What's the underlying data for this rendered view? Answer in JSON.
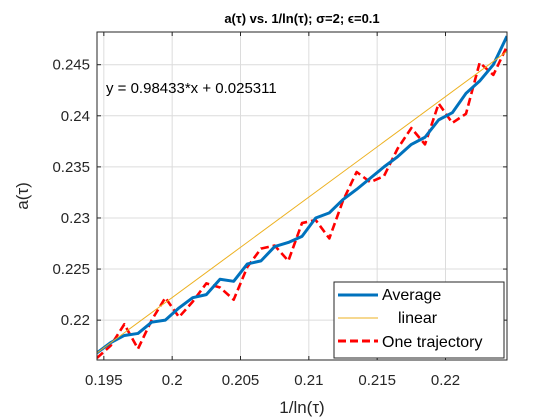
{
  "chart_data": {
    "type": "line",
    "title": "a(τ) vs. 1/ln(τ); σ=2; ϵ=0.1",
    "xlabel": "1/ln(τ)",
    "ylabel": "a(τ)",
    "xlim": [
      0.1945,
      0.2245
    ],
    "ylim": [
      0.2161,
      0.2482
    ],
    "xticks": [
      0.195,
      0.2,
      0.205,
      0.21,
      0.215,
      0.22
    ],
    "xtick_labels": [
      "0.195",
      "0.2",
      "0.205",
      "0.21",
      "0.215",
      "0.22"
    ],
    "yticks": [
      0.22,
      0.225,
      0.23,
      0.235,
      0.24,
      0.245
    ],
    "ytick_labels": [
      "0.22",
      "0.225",
      "0.23",
      "0.235",
      "0.24",
      "0.245"
    ],
    "grid": true,
    "legend_location": "bottom-right",
    "annotation": "y = 0.98433*x + 0.025311",
    "series": [
      {
        "name": "Average",
        "color": "#0072BD",
        "style": "solid",
        "x": [
          0.1945,
          0.1955,
          0.1965,
          0.1975,
          0.1985,
          0.1995,
          0.2005,
          0.2015,
          0.2025,
          0.2035,
          0.2045,
          0.2055,
          0.2065,
          0.2075,
          0.2085,
          0.2095,
          0.2105,
          0.2115,
          0.2125,
          0.2135,
          0.2145,
          0.2155,
          0.2165,
          0.2175,
          0.2185,
          0.2195,
          0.2205,
          0.2215,
          0.2225,
          0.2235,
          0.2245
        ],
        "y": [
          0.2168,
          0.2178,
          0.2185,
          0.2187,
          0.2198,
          0.22,
          0.2212,
          0.2222,
          0.2225,
          0.224,
          0.2238,
          0.2255,
          0.2258,
          0.2272,
          0.2276,
          0.2282,
          0.23,
          0.2305,
          0.2318,
          0.2328,
          0.2339,
          0.235,
          0.236,
          0.2372,
          0.2379,
          0.2396,
          0.2403,
          0.2422,
          0.2434,
          0.245,
          0.2478
        ]
      },
      {
        "name": "linear",
        "color": "#EDB120",
        "style": "solid",
        "x": [
          0.1945,
          0.2245
        ],
        "y": [
          0.2168,
          0.2463
        ]
      },
      {
        "name": "One trajectory",
        "color": "#FF0000",
        "style": "dashed",
        "x": [
          0.1945,
          0.1955,
          0.1965,
          0.1975,
          0.1985,
          0.1995,
          0.2005,
          0.2015,
          0.2025,
          0.2035,
          0.2045,
          0.2055,
          0.2065,
          0.2075,
          0.2085,
          0.2095,
          0.2105,
          0.2115,
          0.2125,
          0.2135,
          0.2145,
          0.2155,
          0.2165,
          0.2175,
          0.2185,
          0.2195,
          0.2205,
          0.2215,
          0.2225,
          0.2235,
          0.2245
        ],
        "y": [
          0.2163,
          0.2175,
          0.2196,
          0.2172,
          0.22,
          0.2222,
          0.2203,
          0.2218,
          0.2236,
          0.2232,
          0.222,
          0.2252,
          0.227,
          0.2273,
          0.2258,
          0.2295,
          0.2298,
          0.228,
          0.2317,
          0.2345,
          0.2335,
          0.2341,
          0.2368,
          0.2388,
          0.2372,
          0.2412,
          0.2393,
          0.2402,
          0.2452,
          0.244,
          0.2468
        ]
      }
    ]
  }
}
